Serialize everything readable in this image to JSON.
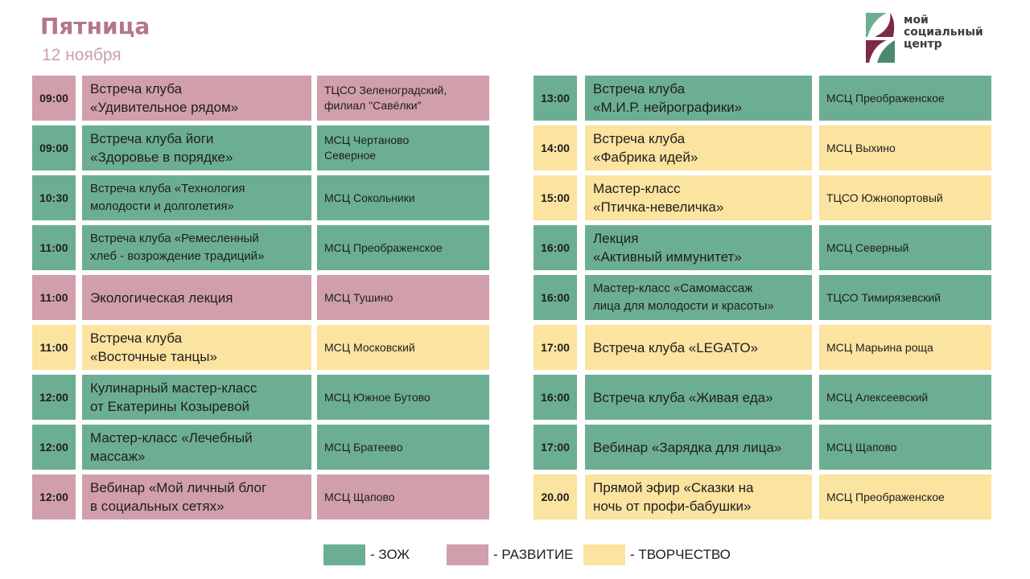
{
  "header": {
    "day": "Пятница",
    "date": "12 ноября"
  },
  "logo": {
    "line1": "мой",
    "line2": "социальный",
    "line3": "центр"
  },
  "colors": {
    "zozh": "#6cae92",
    "razvitie": "#d19fab",
    "tvorchestvo": "#fbe3a0",
    "title": "#b5768a"
  },
  "left": [
    {
      "time": "09:00",
      "event": "Встреча клуба\n«Удивительное рядом»",
      "place": "ТЦСО Зеленоградский,\nфилиал \"Савёлки\"",
      "category": "razvitie"
    },
    {
      "time": "09:00",
      "event": "Встреча клуба йоги\n«Здоровье в порядке»",
      "place": "МСЦ Чертаново\nСеверное",
      "category": "zozh"
    },
    {
      "time": "10:30",
      "event": "Встреча клуба «Технология\nмолодости и долголетия»",
      "place": "МСЦ Сокольники",
      "category": "zozh"
    },
    {
      "time": "11:00",
      "event": "Встреча клуба «Ремесленный\nхлеб - возрождение традиций»",
      "place": "МСЦ Преображенское",
      "category": "zozh"
    },
    {
      "time": "11:00",
      "event": "Экологическая лекция",
      "place": "МСЦ Тушино",
      "category": "razvitie"
    },
    {
      "time": "11:00",
      "event": "Встреча клуба\n«Восточные танцы»",
      "place": "МСЦ Московский",
      "category": "tvorchestvo"
    },
    {
      "time": "12:00",
      "event": "Кулинарный мастер-класс\nот Екатерины Козыревой",
      "place": "МСЦ Южное Бутово",
      "category": "zozh"
    },
    {
      "time": "12:00",
      "event": "Мастер-класс «Лечебный\nмассаж»",
      "place": "МСЦ Братеево",
      "category": "zozh"
    },
    {
      "time": "12:00",
      "event": "Вебинар «Мой личный блог\nв социальных сетях»",
      "place": "МСЦ Щапово",
      "category": "razvitie"
    }
  ],
  "right": [
    {
      "time": "13:00",
      "event": "Встреча клуба\n«М.И.Р. нейрографики»",
      "place": "МСЦ Преображенское",
      "category": "zozh"
    },
    {
      "time": "14:00",
      "event": "Встреча клуба\n«Фабрика идей»",
      "place": "МСЦ Выхино",
      "category": "tvorchestvo"
    },
    {
      "time": "15:00",
      "event": "Мастер-класс\n«Птичка-невеличка»",
      "place": "ТЦСО Южнопортовый",
      "category": "tvorchestvo"
    },
    {
      "time": "16:00",
      "event": "Лекция\n«Активный иммунитет»",
      "place": "МСЦ Северный",
      "category": "zozh"
    },
    {
      "time": "16:00",
      "event": "Мастер-класс «Самомассаж\nлица для молодости и красоты»",
      "place": "ТЦСО Тимирязевский",
      "category": "zozh"
    },
    {
      "time": "17:00",
      "event": "Встреча клуба «LEGATO»",
      "place": "МСЦ Марьина роща",
      "category": "tvorchestvo"
    },
    {
      "time": "16:00",
      "event": "Встреча клуба «Живая еда»",
      "place": "МСЦ Алексеевский",
      "category": "zozh"
    },
    {
      "time": "17:00",
      "event": "Вебинар «Зарядка для лица»",
      "place": "МСЦ Щапово",
      "category": "zozh"
    },
    {
      "time": "20.00",
      "event": "Прямой эфир «Сказки на\nночь от профи-бабушки»",
      "place": "МСЦ Преображенское",
      "category": "tvorchestvo"
    }
  ],
  "legend": [
    {
      "label": "- ЗОЖ",
      "category": "zozh"
    },
    {
      "label": "- РАЗВИТИЕ",
      "category": "razvitie"
    },
    {
      "label": "- ТВОРЧЕСТВО",
      "category": "tvorchestvo"
    }
  ]
}
